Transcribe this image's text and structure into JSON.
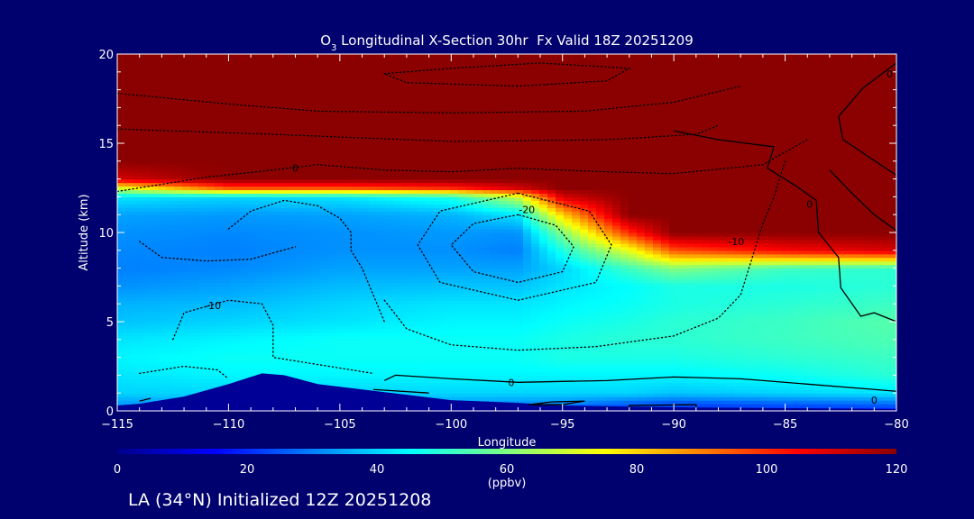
{
  "chart_data": {
    "type": "heatmap",
    "title_parts": {
      "species": "O",
      "subscript": "3",
      "rest": " Longitudinal X-Section 30hr  Fx Valid 18Z 20251209"
    },
    "xlabel": "Longitude",
    "ylabel": "Altitude (km)",
    "xlim": [
      -115,
      -80
    ],
    "ylim": [
      0,
      20
    ],
    "x_ticks": [
      -115,
      -110,
      -105,
      -100,
      -95,
      -90,
      -85,
      -80
    ],
    "x_tick_labels": [
      "−115",
      "−110",
      "−105",
      "−100",
      "−95",
      "−90",
      "−85",
      "−80"
    ],
    "y_ticks": [
      0,
      5,
      10,
      15,
      20
    ],
    "y_tick_labels": [
      "0",
      "5",
      "10",
      "15",
      "20"
    ],
    "field": {
      "description": "ozone mixing ratio (ppbv) vs longitude/altitude",
      "altitudes_km": [
        0,
        0.5,
        1,
        2,
        3,
        4,
        5,
        6,
        7,
        8,
        9,
        10,
        11,
        12,
        12.5,
        13,
        14,
        20
      ],
      "longitudes": [
        -115,
        -110,
        -105,
        -100,
        -97,
        -95,
        -92,
        -90,
        -85,
        -80
      ],
      "values_ppbv": [
        [
          30,
          30,
          30,
          25,
          24,
          22,
          20,
          18,
          18,
          18
        ],
        [
          34,
          34,
          36,
          34,
          33,
          32,
          28,
          26,
          28,
          30
        ],
        [
          40,
          40,
          40,
          40,
          40,
          40,
          40,
          38,
          40,
          42
        ],
        [
          42,
          44,
          44,
          44,
          44,
          44,
          44,
          44,
          46,
          50
        ],
        [
          44,
          46,
          46,
          46,
          46,
          48,
          48,
          48,
          50,
          52
        ],
        [
          42,
          44,
          46,
          46,
          46,
          48,
          50,
          50,
          52,
          54
        ],
        [
          38,
          40,
          42,
          44,
          44,
          46,
          48,
          50,
          52,
          55
        ],
        [
          36,
          37,
          40,
          42,
          42,
          44,
          46,
          48,
          50,
          52
        ],
        [
          32,
          34,
          37,
          38,
          38,
          42,
          45,
          48,
          48,
          50
        ],
        [
          30,
          31,
          34,
          34,
          34,
          40,
          52,
          60,
          52,
          50
        ],
        [
          31,
          30,
          32,
          32,
          30,
          48,
          72,
          95,
          105,
          110
        ],
        [
          32,
          31,
          32,
          33,
          32,
          60,
          100,
          120,
          120,
          120
        ],
        [
          34,
          33,
          34,
          36,
          42,
          80,
          120,
          120,
          120,
          120
        ],
        [
          42,
          40,
          42,
          48,
          68,
          110,
          120,
          120,
          120,
          120
        ],
        [
          70,
          95,
          95,
          100,
          110,
          120,
          120,
          120,
          120,
          120
        ],
        [
          110,
          120,
          120,
          120,
          120,
          120,
          120,
          120,
          120,
          120
        ],
        [
          120,
          120,
          120,
          120,
          120,
          120,
          120,
          120,
          120,
          120
        ],
        [
          120,
          120,
          120,
          120,
          120,
          120,
          120,
          120,
          120,
          120
        ]
      ]
    },
    "terrain": {
      "description": "surface terrain (masked area)",
      "points": [
        [
          -115,
          0.3
        ],
        [
          -114,
          0.4
        ],
        [
          -112,
          0.8
        ],
        [
          -110,
          1.5
        ],
        [
          -108.5,
          2.1
        ],
        [
          -107.5,
          2.0
        ],
        [
          -106,
          1.5
        ],
        [
          -104,
          1.2
        ],
        [
          -102,
          0.9
        ],
        [
          -100,
          0.6
        ],
        [
          -97,
          0.45
        ],
        [
          -95,
          0.3
        ],
        [
          -90,
          0.2
        ],
        [
          -85,
          0.15
        ],
        [
          -80,
          0.1
        ]
      ]
    },
    "contour_lines": [
      {
        "style": "dotted",
        "points": [
          [
            -110,
            10.2
          ],
          [
            -109,
            11.2
          ],
          [
            -107.5,
            11.8
          ],
          [
            -106,
            11.5
          ],
          [
            -105,
            10.8
          ],
          [
            -104.5,
            10
          ],
          [
            -104.5,
            9
          ],
          [
            -104,
            8
          ],
          [
            -103.5,
            6.5
          ],
          [
            -103,
            5
          ]
        ]
      },
      {
        "style": "dotted",
        "points": [
          [
            -97,
            11
          ],
          [
            -99,
            10.5
          ],
          [
            -100,
            9.3
          ],
          [
            -99,
            7.8
          ],
          [
            -97,
            7.2
          ],
          [
            -95,
            7.8
          ],
          [
            -94.5,
            9.2
          ],
          [
            -95.3,
            10.4
          ],
          [
            -97,
            11
          ]
        ]
      },
      {
        "style": "dotted",
        "points": [
          [
            -97,
            12.2
          ],
          [
            -100.5,
            11.2
          ],
          [
            -101.5,
            9.3
          ],
          [
            -100.5,
            7.2
          ],
          [
            -97,
            6.2
          ],
          [
            -93.5,
            7.2
          ],
          [
            -92.8,
            9.3
          ],
          [
            -93.8,
            11.2
          ],
          [
            -97,
            12.2
          ]
        ]
      },
      {
        "style": "dotted",
        "points": [
          [
            -103,
            6.2
          ],
          [
            -102,
            4.6
          ],
          [
            -100,
            3.7
          ],
          [
            -97,
            3.4
          ],
          [
            -93.5,
            3.6
          ],
          [
            -90,
            4.2
          ],
          [
            -88,
            5.2
          ],
          [
            -87,
            6.5
          ],
          [
            -86.5,
            8.5
          ],
          [
            -86,
            10.5
          ],
          [
            -85.5,
            12
          ],
          [
            -85,
            14
          ]
        ]
      },
      {
        "style": "dotted",
        "points": [
          [
            -114,
            9.5
          ],
          [
            -113,
            8.6
          ],
          [
            -111,
            8.4
          ],
          [
            -109,
            8.5
          ],
          [
            -107,
            9.2
          ]
        ]
      },
      {
        "style": "dotted",
        "points": [
          [
            -112.5,
            4.0
          ],
          [
            -112,
            5.5
          ],
          [
            -110,
            6.2
          ],
          [
            -108.5,
            6.0
          ],
          [
            -108,
            4.8
          ],
          [
            -108,
            3.0
          ],
          [
            -105,
            2.4
          ],
          [
            -103.5,
            2.1
          ]
        ]
      },
      {
        "style": "dotted",
        "points": [
          [
            -114,
            2.1
          ],
          [
            -112,
            2.5
          ],
          [
            -110.5,
            2.3
          ],
          [
            -110,
            1.8
          ]
        ]
      },
      {
        "style": "dotted",
        "points": [
          [
            -115,
            12.3
          ],
          [
            -111,
            13.1
          ],
          [
            -108,
            13.5
          ],
          [
            -106,
            13.8
          ],
          [
            -103,
            13.5
          ],
          [
            -100,
            13.4
          ],
          [
            -97,
            13.6
          ],
          [
            -93,
            13.4
          ],
          [
            -90,
            13.3
          ],
          [
            -86,
            13.8
          ],
          [
            -84,
            15.2
          ]
        ]
      },
      {
        "style": "dotted",
        "points": [
          [
            -115,
            17.8
          ],
          [
            -110,
            17.2
          ],
          [
            -106,
            16.8
          ],
          [
            -100,
            16.7
          ],
          [
            -94,
            16.8
          ],
          [
            -90,
            17.3
          ],
          [
            -87,
            18.2
          ]
        ]
      },
      {
        "style": "dotted",
        "points": [
          [
            -103,
            18.9
          ],
          [
            -100,
            19.2
          ],
          [
            -96,
            19.5
          ],
          [
            -92,
            19.2
          ],
          [
            -93,
            18.5
          ],
          [
            -97,
            18.2
          ],
          [
            -102,
            18.4
          ],
          [
            -103,
            18.9
          ]
        ]
      },
      {
        "style": "dotted",
        "points": [
          [
            -115,
            15.8
          ],
          [
            -108,
            15.5
          ],
          [
            -100,
            15.1
          ],
          [
            -93,
            15.2
          ],
          [
            -89,
            15.5
          ],
          [
            -88,
            16.0
          ]
        ]
      },
      {
        "style": "solid",
        "points": [
          [
            -103,
            1.7
          ],
          [
            -102.5,
            2.0
          ],
          [
            -100,
            1.8
          ],
          [
            -97,
            1.6
          ],
          [
            -93,
            1.7
          ],
          [
            -90,
            1.9
          ],
          [
            -87,
            1.8
          ],
          [
            -84,
            1.5
          ],
          [
            -81,
            1.2
          ],
          [
            -80,
            1.1
          ]
        ]
      },
      {
        "style": "solid",
        "points": [
          [
            -90,
            15.7
          ],
          [
            -88,
            15.2
          ],
          [
            -85.5,
            14.8
          ],
          [
            -85.8,
            13.6
          ],
          [
            -84.5,
            12.6
          ],
          [
            -83.6,
            11.8
          ],
          [
            -83.5,
            10
          ],
          [
            -82.6,
            8.6
          ],
          [
            -82.5,
            6.9
          ],
          [
            -81.6,
            5.3
          ],
          [
            -81,
            5.5
          ],
          [
            -80,
            5.0
          ]
        ]
      },
      {
        "style": "solid",
        "points": [
          [
            -80,
            19.5
          ],
          [
            -81.5,
            18.1
          ],
          [
            -82.6,
            16.5
          ],
          [
            -82.4,
            15.2
          ],
          [
            -81.2,
            14.2
          ],
          [
            -80,
            13.2
          ]
        ]
      },
      {
        "style": "solid",
        "points": [
          [
            -80,
            10.1
          ],
          [
            -81,
            11.0
          ],
          [
            -82,
            12.2
          ],
          [
            -83.0,
            13.5
          ]
        ]
      },
      {
        "style": "solid",
        "points": [
          [
            -95,
            0.35
          ],
          [
            -94,
            0.55
          ],
          [
            -95.5,
            0.5
          ],
          [
            -96.5,
            0.35
          ],
          [
            -95,
            0.35
          ]
        ]
      },
      {
        "style": "solid",
        "points": [
          [
            -92,
            0.15
          ],
          [
            -92,
            0.3
          ],
          [
            -89,
            0.35
          ],
          [
            -89,
            0.15
          ]
        ]
      },
      {
        "style": "solid",
        "points": [
          [
            -103.5,
            1.2
          ],
          [
            -101,
            1.0
          ]
        ]
      },
      {
        "style": "solid",
        "points": [
          [
            -114,
            0.55
          ],
          [
            -113.5,
            0.7
          ]
        ]
      }
    ],
    "contour_labels": [
      {
        "text": "0",
        "x": -107.0,
        "y": 13.6
      },
      {
        "text": "-20",
        "x": -96.6,
        "y": 11.3
      },
      {
        "text": "-10",
        "x": -110.7,
        "y": 5.9
      },
      {
        "text": "-10",
        "x": -87.2,
        "y": 9.5
      },
      {
        "text": "0",
        "x": -97.3,
        "y": 1.6
      },
      {
        "text": "0",
        "x": -83.9,
        "y": 11.6
      },
      {
        "text": "0",
        "x": -80.3,
        "y": 18.9
      },
      {
        "text": "0",
        "x": -81.0,
        "y": 0.6
      }
    ],
    "colorbar": {
      "min": 0,
      "max": 120,
      "tick_values": [
        0,
        20,
        40,
        60,
        80,
        100,
        120
      ],
      "tick_labels": [
        "0",
        "20",
        "40",
        "60",
        "80",
        "100",
        "120"
      ],
      "units": "(ppbv)",
      "stops": [
        "#00008c",
        "#0000ff",
        "#0080ff",
        "#00ffff",
        "#80ff80",
        "#ffff00",
        "#ff8000",
        "#ff0000",
        "#8b0000"
      ]
    }
  },
  "footer": {
    "text": "LA (34°N) Initialized 12Z 20251208"
  },
  "colors": {
    "background": "#00006e",
    "terrain": "#000096",
    "axis": "#ffffff",
    "contour": "#000000"
  }
}
